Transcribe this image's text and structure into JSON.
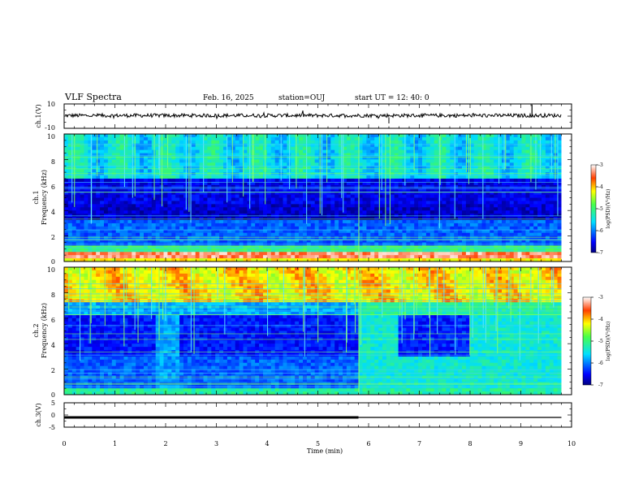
{
  "header": {
    "title": "VLF Spectra",
    "date": "Feb. 16, 2025",
    "station": "station=OUJ",
    "start": "start  UT =   12: 40: 0"
  },
  "chart_data": {
    "type": "heatmap",
    "time_axis": {
      "label": "Time  (min)",
      "range": [
        0,
        10
      ],
      "ticks": [
        "0",
        "1",
        "2",
        "3",
        "4",
        "5",
        "6",
        "7",
        "8",
        "9",
        "10"
      ],
      "data_end": 9.8
    },
    "ch1_waveform": {
      "ylabel": "ch.1(V)",
      "ticks": [
        "10",
        "-10"
      ],
      "ylim": [
        -10,
        10
      ],
      "baseline": 0.5,
      "noise_amplitude": 1.5
    },
    "ch1_spectrogram": {
      "ylabel_top": "ch.1",
      "ylabel": "Frequency (kHz)",
      "ticks": [
        "10",
        "8",
        "6",
        "4",
        "2",
        "0"
      ],
      "ylim": [
        0,
        10
      ],
      "colorbar": {
        "label": "log(PSD)(V²/Hz)",
        "ticks": [
          "-3",
          "-4",
          "-5",
          "-6",
          "-7"
        ],
        "range": [
          -7,
          -3
        ]
      },
      "description": "Strong narrow-band lines below 1 kHz, broadband noise above 6.5 kHz, impulsive vertical spikes"
    },
    "ch2_spectrogram": {
      "ylabel_top": "ch.2",
      "ylabel": "Frequency (kHz)",
      "ticks": [
        "10",
        "8",
        "6",
        "4",
        "2",
        "0"
      ],
      "ylim": [
        0,
        10
      ],
      "colorbar": {
        "label": "log(PSD)(V²/Hz)",
        "ticks": [
          "-3",
          "-4",
          "-5",
          "-6",
          "-7"
        ],
        "range": [
          -7,
          -3
        ]
      },
      "description": "High-intensity band above 7 kHz, elevated noise after 5.8 min"
    },
    "ch3_level": {
      "ylabel": "ch.3(V)",
      "ticks": [
        "5",
        "0",
        "-5"
      ],
      "ylim": [
        -5,
        5
      ],
      "segments": [
        {
          "t0": 0.0,
          "t1": 5.8,
          "v": -1.0,
          "thick": true
        },
        {
          "t0": 5.8,
          "t1": 9.8,
          "v": -1.0,
          "thick": false
        }
      ]
    }
  }
}
